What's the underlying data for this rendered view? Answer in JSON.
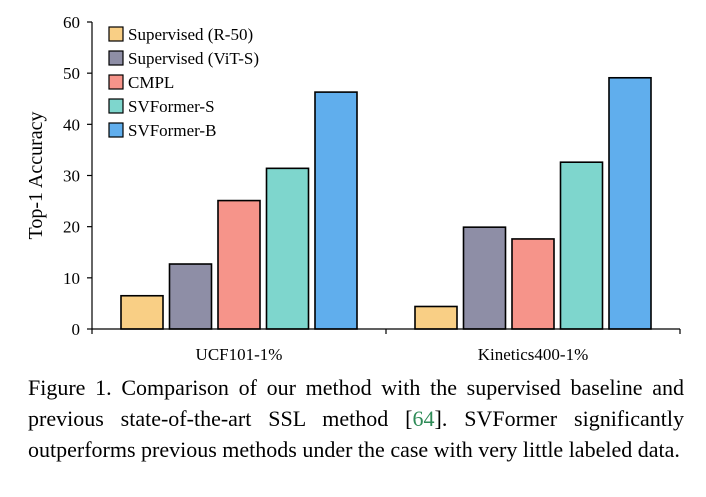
{
  "chart_data": {
    "type": "bar",
    "ylabel": "Top-1 Accuracy",
    "xlabel": "",
    "ylim": [
      0,
      60
    ],
    "yticks": [
      0,
      10,
      20,
      30,
      40,
      50,
      60
    ],
    "categories": [
      "UCF101-1%",
      "Kinetics400-1%"
    ],
    "legend_position": "top-left",
    "grid": false,
    "series": [
      {
        "name": "Supervised (R-50)",
        "color": "#f9cf85",
        "values": [
          6.5,
          4.4
        ]
      },
      {
        "name": "Supervised (ViT-S)",
        "color": "#8e8ea6",
        "values": [
          12.7,
          19.9
        ]
      },
      {
        "name": "CMPL",
        "color": "#f6948a",
        "values": [
          25.1,
          17.6
        ]
      },
      {
        "name": "SVFormer-S",
        "color": "#7ed6cd",
        "values": [
          31.4,
          32.6
        ]
      },
      {
        "name": "SVFormer-B",
        "color": "#60aeed",
        "values": [
          46.3,
          49.1
        ]
      }
    ]
  },
  "caption": {
    "prefix": "Figure 1. Comparison of our method with the supervised baseline and previous state-of-the-art SSL method [",
    "citation": "64",
    "suffix": "]. SVFormer significantly outperforms previous methods under the case with very little labeled data."
  }
}
